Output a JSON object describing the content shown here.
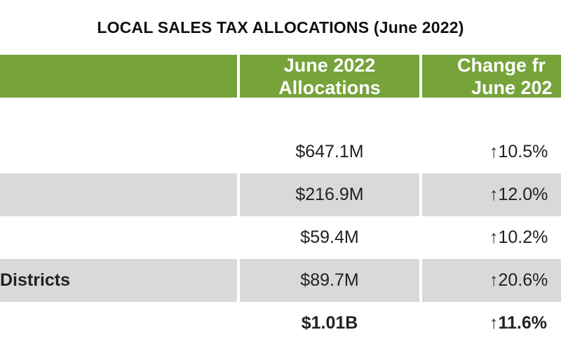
{
  "title": "LOCAL SALES TAX ALLOCATIONS (June 2022)",
  "table": {
    "headers": {
      "col1": "",
      "col2_line1": "June 2022",
      "col2_line2": "Allocations",
      "col3_line1": "Change fr",
      "col3_line2": "June 202"
    },
    "rows": [
      {
        "label": "",
        "allocation": "$647.1M",
        "change": "10.5%"
      },
      {
        "label": "",
        "allocation": "$216.9M",
        "change": "12.0%"
      },
      {
        "label": "",
        "allocation": "$59.4M",
        "change": "10.2%"
      },
      {
        "label": "Districts",
        "allocation": "$89.7M",
        "change": "20.6%"
      },
      {
        "label": "",
        "allocation": "$1.01B",
        "change": "11.6%"
      }
    ],
    "arrow_glyph": "↑"
  }
}
